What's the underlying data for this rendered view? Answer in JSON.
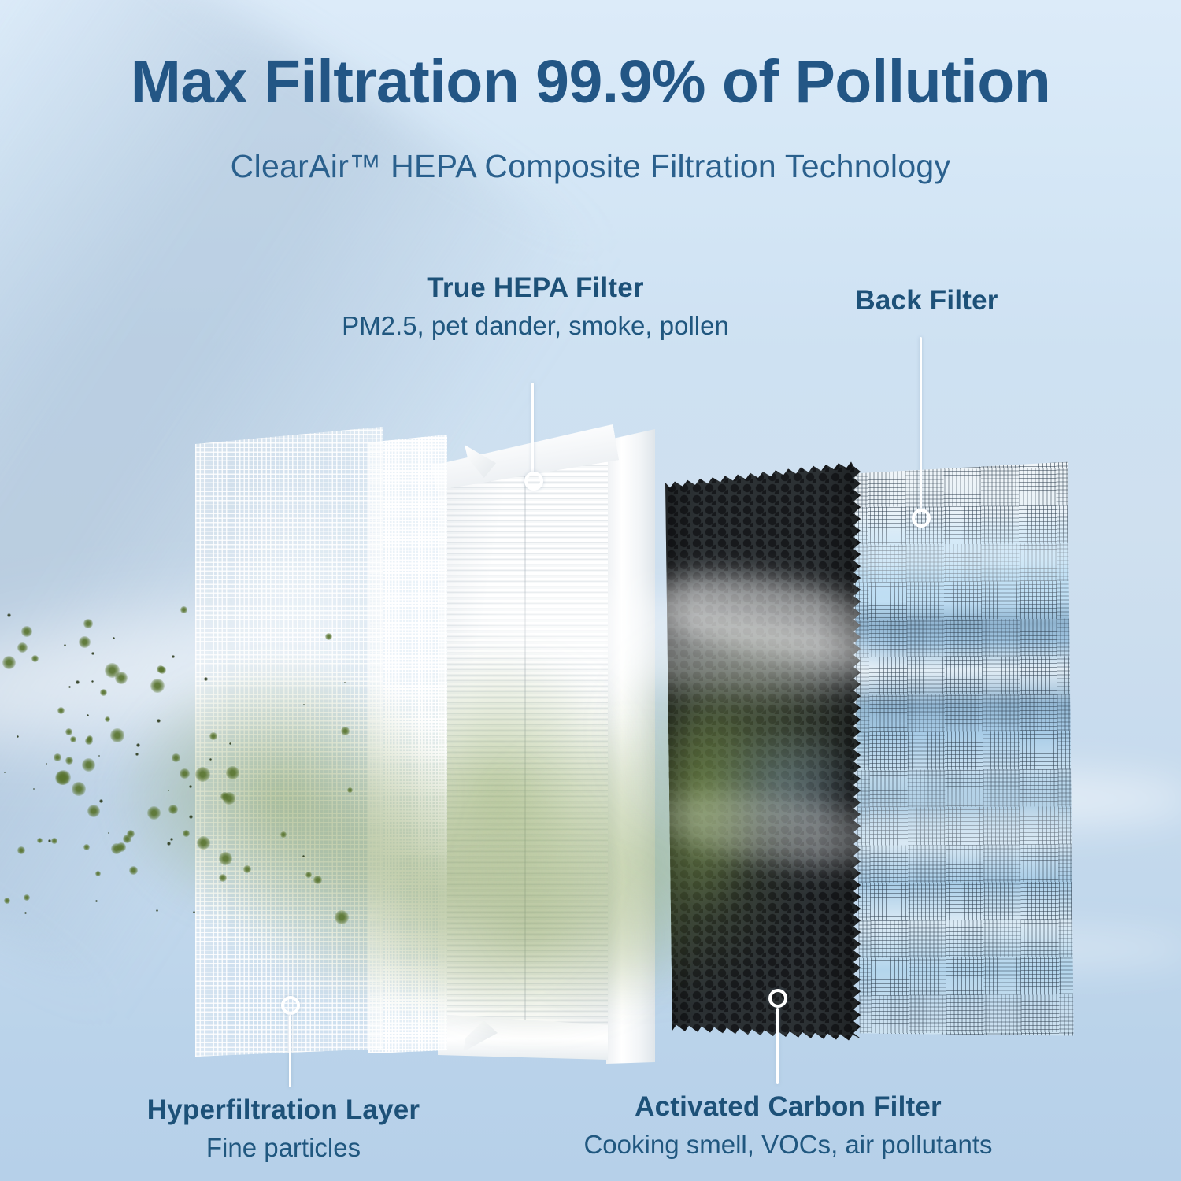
{
  "header": {
    "title": "Max Filtration 99.9% of Pollution",
    "subtitle": "ClearAir™ HEPA Composite Filtration Technology"
  },
  "callouts": {
    "true_hepa": {
      "label": "True HEPA Filter",
      "sublabel": "PM2.5, pet dander, smoke, pollen"
    },
    "back_filter": {
      "label": "Back Filter"
    },
    "hyperfiltration": {
      "label": "Hyperfiltration Layer",
      "sublabel": "Fine particles"
    },
    "activated_carbon": {
      "label": "Activated Carbon Filter",
      "sublabel": "Cooking smell, VOCs, air pollutants"
    }
  },
  "colors": {
    "heading_text": "#235685",
    "label_text": "#1d5178",
    "background_top": "#dcebf9",
    "background_bottom": "#b6d0e9",
    "particle_green": "#58732e",
    "carbon_black": "#2c3134",
    "sky_band_blue": "#a5d2ef",
    "callout_white": "#ffffff"
  }
}
